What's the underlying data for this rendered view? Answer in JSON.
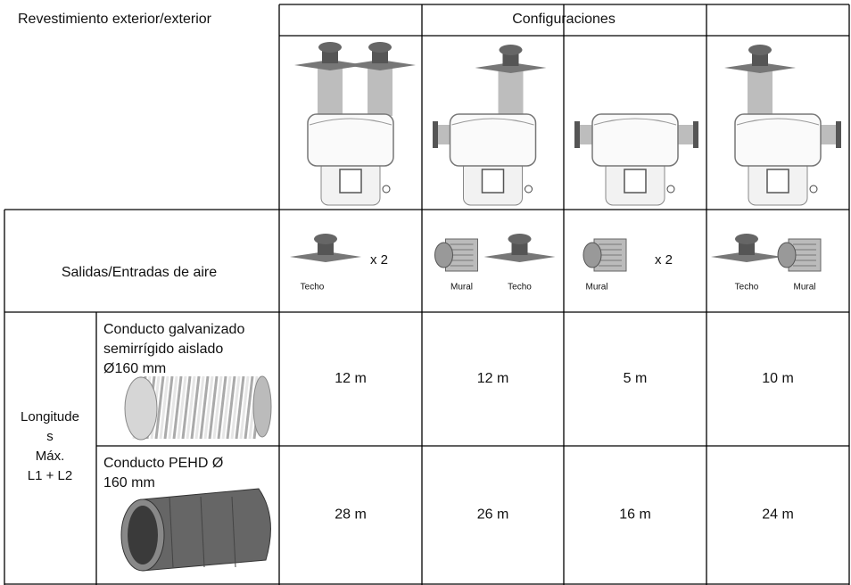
{
  "header": {
    "left": "Revestimiento exterior/exterior",
    "configurations": "Configuraciones"
  },
  "outlets_row": {
    "label": "Salidas/Entradas de aire",
    "cells": [
      {
        "labels": [
          "Techo"
        ],
        "multiplier": "x 2"
      },
      {
        "labels": [
          "Mural",
          "Techo"
        ]
      },
      {
        "labels": [
          "Mural"
        ],
        "multiplier": "x 2"
      },
      {
        "labels": [
          "Techo",
          "Mural"
        ]
      }
    ]
  },
  "lengths": {
    "label": [
      "Longitude",
      "s",
      "Máx.",
      "L1 + L2"
    ],
    "rows": [
      {
        "duct": [
          "Conducto galvanizado",
          "semirrígido aislado",
          "Ø160 mm"
        ],
        "values": [
          "12 m",
          "12 m",
          "5 m",
          "10 m"
        ]
      },
      {
        "duct": [
          "Conducto PEHD Ø",
          "160 mm"
        ],
        "values": [
          "28 m",
          "26 m",
          "16 m",
          "24 m"
        ]
      }
    ]
  }
}
